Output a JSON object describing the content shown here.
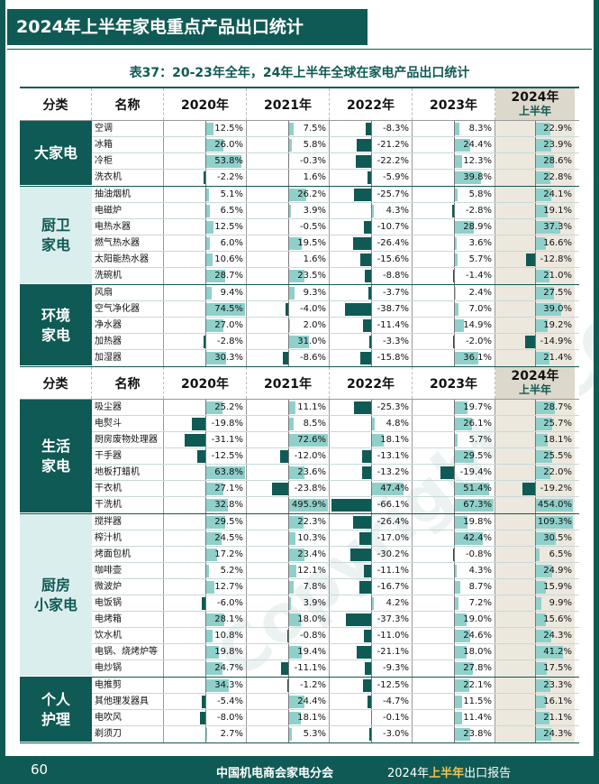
{
  "page_title": "2024年上半年家电重点产品出口统计",
  "table_title": "表37：20-23年全年，24年上半年全球在家电产品出口统计",
  "watermark": "Copyright©CCME",
  "headers": {
    "category": "分类",
    "name": "名称",
    "years": [
      "2020年",
      "2021年",
      "2022年",
      "2023年"
    ],
    "year2024": "2024年",
    "year2024_sub": "上半年"
  },
  "colors": {
    "primary": "#0f5a54",
    "bar_positive": "#8fd0cb",
    "bar_negative": "#0f5a54",
    "highlight_col": "#ece8de"
  },
  "groups": [
    {
      "category": "大家电",
      "rows": [
        {
          "name": "空调",
          "values": [
            "12.5%",
            "7.5%",
            "-8.3%",
            "8.3%",
            "22.9%"
          ]
        },
        {
          "name": "冰箱",
          "values": [
            "26.0%",
            "5.8%",
            "-21.2%",
            "24.4%",
            "23.9%"
          ]
        },
        {
          "name": "冷柜",
          "values": [
            "53.8%",
            "-0.3%",
            "-22.2%",
            "12.3%",
            "28.6%"
          ]
        },
        {
          "name": "洗衣机",
          "values": [
            "-2.2%",
            "1.6%",
            "-5.9%",
            "39.8%",
            "22.8%"
          ]
        }
      ]
    },
    {
      "category": "厨卫\n家电",
      "rows": [
        {
          "name": "抽油烟机",
          "values": [
            "5.1%",
            "26.2%",
            "-25.7%",
            "5.8%",
            "24.1%"
          ]
        },
        {
          "name": "电磁炉",
          "values": [
            "6.5%",
            "3.9%",
            "4.3%",
            "-2.8%",
            "19.1%"
          ]
        },
        {
          "name": "电热水器",
          "values": [
            "12.5%",
            "-0.5%",
            "-10.7%",
            "28.9%",
            "37.3%"
          ]
        },
        {
          "name": "燃气热水器",
          "values": [
            "6.0%",
            "19.5%",
            "-26.4%",
            "3.6%",
            "16.6%"
          ]
        },
        {
          "name": "太阳能热水器",
          "values": [
            "10.6%",
            "1.6%",
            "-15.6%",
            "5.7%",
            "-12.8%"
          ]
        },
        {
          "name": "洗碗机",
          "values": [
            "28.7%",
            "23.5%",
            "-8.8%",
            "-1.4%",
            "21.0%"
          ]
        }
      ]
    },
    {
      "category": "环境\n家电",
      "rows": [
        {
          "name": "风扇",
          "values": [
            "9.4%",
            "9.3%",
            "-3.7%",
            "2.4%",
            "27.5%"
          ]
        },
        {
          "name": "空气净化器",
          "values": [
            "74.5%",
            "-4.0%",
            "-38.7%",
            "7.0%",
            "39.0%"
          ]
        },
        {
          "name": "净水器",
          "values": [
            "27.0%",
            "2.0%",
            "-11.4%",
            "14.9%",
            "19.2%"
          ]
        },
        {
          "name": "加热器",
          "values": [
            "-2.8%",
            "31.0%",
            "-3.3%",
            "-2.0%",
            "-14.9%"
          ]
        },
        {
          "name": "加湿器",
          "values": [
            "30.3%",
            "-8.6%",
            "-15.8%",
            "36.1%",
            "21.4%"
          ]
        }
      ]
    },
    {
      "category": "生活\n家电",
      "rows": [
        {
          "name": "吸尘器",
          "values": [
            "25.2%",
            "11.1%",
            "-25.3%",
            "19.7%",
            "28.7%"
          ]
        },
        {
          "name": "电熨斗",
          "values": [
            "-19.8%",
            "8.5%",
            "4.8%",
            "26.1%",
            "25.7%"
          ]
        },
        {
          "name": "厨房废物处理器",
          "values": [
            "-31.1%",
            "72.6%",
            "18.1%",
            "5.7%",
            "18.1%"
          ]
        },
        {
          "name": "干手器",
          "values": [
            "-12.5%",
            "-12.0%",
            "-13.1%",
            "29.5%",
            "25.5%"
          ]
        },
        {
          "name": "地板打蜡机",
          "values": [
            "63.8%",
            "23.6%",
            "-13.2%",
            "-19.4%",
            "22.0%"
          ]
        },
        {
          "name": "干衣机",
          "values": [
            "27.1%",
            "-23.8%",
            "47.4%",
            "51.4%",
            "-19.2%"
          ]
        },
        {
          "name": "干洗机",
          "values": [
            "32.8%",
            "495.9%",
            "-66.1%",
            "67.3%",
            "454.0%"
          ]
        }
      ]
    },
    {
      "category": "厨房\n小家电",
      "rows": [
        {
          "name": "搅拌器",
          "values": [
            "29.5%",
            "22.3%",
            "-26.4%",
            "19.8%",
            "109.3%"
          ]
        },
        {
          "name": "榨汁机",
          "values": [
            "24.5%",
            "10.3%",
            "-17.0%",
            "42.4%",
            "30.5%"
          ]
        },
        {
          "name": "烤面包机",
          "values": [
            "17.2%",
            "23.4%",
            "-30.2%",
            "-0.8%",
            "6.5%"
          ]
        },
        {
          "name": "咖啡壶",
          "values": [
            "5.2%",
            "12.1%",
            "-11.1%",
            "4.3%",
            "24.9%"
          ]
        },
        {
          "name": "微波炉",
          "values": [
            "12.7%",
            "7.8%",
            "-16.7%",
            "8.7%",
            "15.9%"
          ]
        },
        {
          "name": "电饭锅",
          "values": [
            "-6.0%",
            "3.9%",
            "4.2%",
            "7.2%",
            "9.9%"
          ]
        },
        {
          "name": "电烤箱",
          "values": [
            "28.1%",
            "18.0%",
            "-37.3%",
            "19.0%",
            "15.6%"
          ]
        },
        {
          "name": "饮水机",
          "values": [
            "10.8%",
            "-0.8%",
            "-11.0%",
            "24.6%",
            "24.3%"
          ]
        },
        {
          "name": "电锅、烧烤炉等",
          "values": [
            "19.8%",
            "19.4%",
            "-21.1%",
            "18.0%",
            "41.2%"
          ]
        },
        {
          "name": "电炒锅",
          "values": [
            "24.7%",
            "-11.1%",
            "-9.3%",
            "27.8%",
            "17.5%"
          ]
        }
      ]
    },
    {
      "category": "个人\n护理",
      "rows": [
        {
          "name": "电推剪",
          "values": [
            "34.3%",
            "-1.2%",
            "-12.5%",
            "22.1%",
            "23.3%"
          ]
        },
        {
          "name": "其他理发器具",
          "values": [
            "-5.4%",
            "24.4%",
            "-4.7%",
            "11.5%",
            "16.1%"
          ]
        },
        {
          "name": "电吹风",
          "values": [
            "-8.0%",
            "18.1%",
            "-0.1%",
            "11.4%",
            "21.1%"
          ]
        },
        {
          "name": "剃须刀",
          "values": [
            "2.7%",
            "5.3%",
            "-3.0%",
            "23.8%",
            "24.3%"
          ]
        }
      ]
    }
  ],
  "footer": {
    "page_number": "60",
    "organization": "中国机电商会家电分会",
    "report_prefix": "2024年",
    "report_highlight": "上半年",
    "report_suffix": "出口报告"
  }
}
